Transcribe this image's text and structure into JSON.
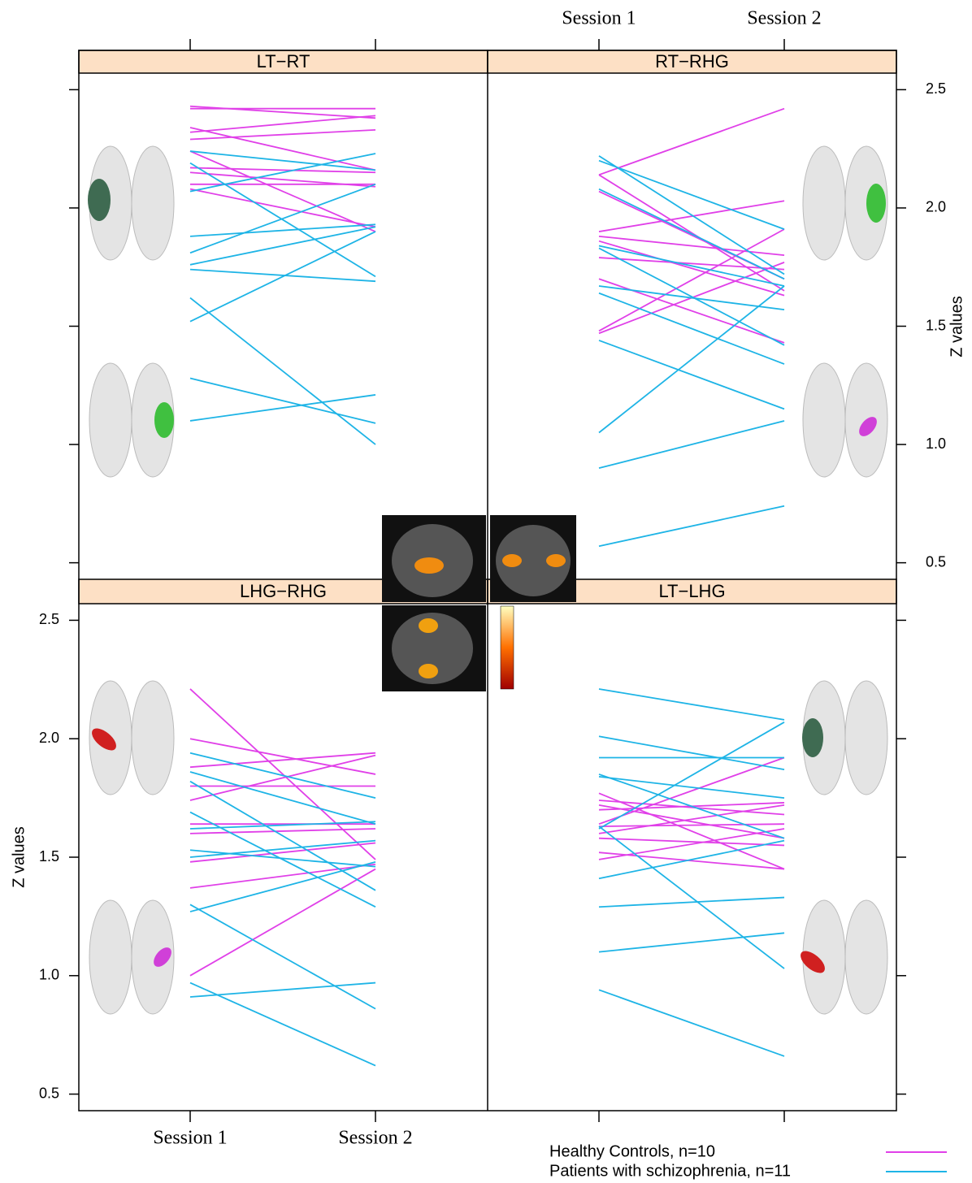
{
  "chart_data": {
    "type": "line",
    "categories": [
      "Session 1",
      "Session 2"
    ],
    "y_label": "Z values",
    "ylim": [
      0.43,
      2.57
    ],
    "yticks": [
      0.5,
      {
        "value": 1,
        "label": "1.0"
      },
      1.5,
      {
        "value": 2,
        "label": "2.0"
      },
      2.5
    ],
    "series": [
      {
        "name": "Healthy Controls, n=10",
        "color": "#e040e8"
      },
      {
        "name": "Patients with schizophrenia, n=11",
        "color": "#1eb4e6"
      }
    ],
    "panels": [
      {
        "title": "LT−RT",
        "values": [
          [
            [
              2.43,
              2.38
            ],
            [
              2.42,
              2.42
            ],
            [
              2.34,
              2.16
            ],
            [
              2.32,
              2.39
            ],
            [
              2.29,
              2.33
            ],
            [
              2.24,
              1.9
            ],
            [
              2.17,
              2.15
            ],
            [
              2.15,
              2.09
            ],
            [
              2.1,
              2.1
            ],
            [
              2.08,
              1.92
            ]
          ],
          [
            [
              2.24,
              2.16
            ],
            [
              2.19,
              1.71
            ],
            [
              2.07,
              2.23
            ],
            [
              1.88,
              1.93
            ],
            [
              1.81,
              2.1
            ],
            [
              1.76,
              1.92
            ],
            [
              1.74,
              1.69
            ],
            [
              1.62,
              1.0
            ],
            [
              1.52,
              1.9
            ],
            [
              1.28,
              1.09
            ],
            [
              1.1,
              1.21
            ]
          ]
        ]
      },
      {
        "title": "RT−RHG",
        "values": [
          [
            [
              2.14,
              2.42
            ],
            [
              2.14,
              1.65
            ],
            [
              2.07,
              1.7
            ],
            [
              1.9,
              2.03
            ],
            [
              1.88,
              1.8
            ],
            [
              1.86,
              1.63
            ],
            [
              1.79,
              1.74
            ],
            [
              1.7,
              1.43
            ],
            [
              1.48,
              1.91
            ],
            [
              1.47,
              1.77
            ]
          ],
          [
            [
              2.22,
              1.72
            ],
            [
              2.2,
              1.91
            ],
            [
              2.08,
              1.7
            ],
            [
              1.84,
              1.67
            ],
            [
              1.83,
              1.42
            ],
            [
              1.67,
              1.57
            ],
            [
              1.64,
              1.34
            ],
            [
              1.44,
              1.15
            ],
            [
              1.05,
              1.67
            ],
            [
              0.9,
              1.1
            ],
            [
              0.57,
              0.74
            ]
          ]
        ]
      },
      {
        "title": "LHG−RHG",
        "values": [
          [
            [
              2.21,
              1.49
            ],
            [
              2.0,
              1.85
            ],
            [
              1.88,
              1.94
            ],
            [
              1.8,
              1.8
            ],
            [
              1.74,
              1.93
            ],
            [
              1.64,
              1.64
            ],
            [
              1.6,
              1.62
            ],
            [
              1.48,
              1.56
            ],
            [
              1.37,
              1.47
            ],
            [
              1.0,
              1.45
            ]
          ],
          [
            [
              1.94,
              1.75
            ],
            [
              1.86,
              1.64
            ],
            [
              1.82,
              1.36
            ],
            [
              1.69,
              1.29
            ],
            [
              1.62,
              1.65
            ],
            [
              1.53,
              1.46
            ],
            [
              1.5,
              1.57
            ],
            [
              1.3,
              0.86
            ],
            [
              1.27,
              1.48
            ],
            [
              0.97,
              0.62
            ],
            [
              0.91,
              0.97
            ]
          ]
        ]
      },
      {
        "title": "LT−LHG",
        "values": [
          [
            [
              1.77,
              1.45
            ],
            [
              1.74,
              1.68
            ],
            [
              1.72,
              1.58
            ],
            [
              1.7,
              1.73
            ],
            [
              1.64,
              1.92
            ],
            [
              1.63,
              1.64
            ],
            [
              1.6,
              1.72
            ],
            [
              1.58,
              1.55
            ],
            [
              1.52,
              1.45
            ],
            [
              1.49,
              1.62
            ]
          ],
          [
            [
              2.21,
              2.08
            ],
            [
              2.01,
              1.87
            ],
            [
              1.92,
              1.92
            ],
            [
              1.85,
              1.58
            ],
            [
              1.84,
              1.75
            ],
            [
              1.62,
              2.07
            ],
            [
              1.63,
              1.03
            ],
            [
              1.41,
              1.57
            ],
            [
              1.29,
              1.33
            ],
            [
              1.1,
              1.18
            ],
            [
              0.94,
              0.66
            ]
          ]
        ]
      }
    ]
  }
}
